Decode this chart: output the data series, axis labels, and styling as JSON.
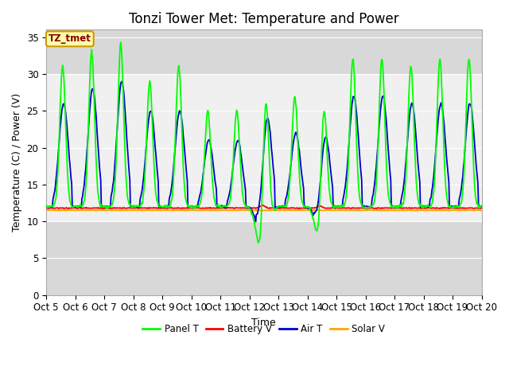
{
  "title": "Tonzi Tower Met: Temperature and Power",
  "ylabel": "Temperature (C) / Power (V)",
  "xlabel": "Time",
  "annotation_text": "TZ_tmet",
  "ylim": [
    0,
    36
  ],
  "yticks": [
    0,
    5,
    10,
    15,
    20,
    25,
    30,
    35
  ],
  "x_tick_labels": [
    "Oct 5",
    "Oct 6",
    "Oct 7",
    "Oct 8",
    "Oct 9",
    "Oct 10",
    "Oct 11",
    "Oct 12",
    "Oct 13",
    "Oct 14",
    "Oct 15",
    "Oct 16",
    "Oct 17",
    "Oct 18",
    "Oct 19",
    "Oct 20"
  ],
  "panel_color": "#00FF00",
  "battery_color": "#FF0000",
  "air_color": "#0000CC",
  "solar_color": "#FFA500",
  "plot_bg_color": "#D8D8D8",
  "band_color": "#F0F0F0",
  "band_lower": 10,
  "band_upper": 30,
  "legend_labels": [
    "Panel T",
    "Battery V",
    "Air T",
    "Solar V"
  ],
  "title_fontsize": 12,
  "label_fontsize": 9,
  "tick_fontsize": 8.5,
  "battery_base": 11.8,
  "solar_base": 11.5,
  "panel_amps": [
    19,
    21,
    22,
    17,
    19,
    13,
    13,
    20,
    15,
    16,
    20,
    20,
    19,
    20,
    20
  ],
  "air_amps": [
    14,
    16,
    17,
    13,
    13,
    9,
    9,
    15,
    10,
    11,
    15,
    15,
    14,
    14,
    14
  ],
  "n_days": 15,
  "pts_per_day": 48
}
